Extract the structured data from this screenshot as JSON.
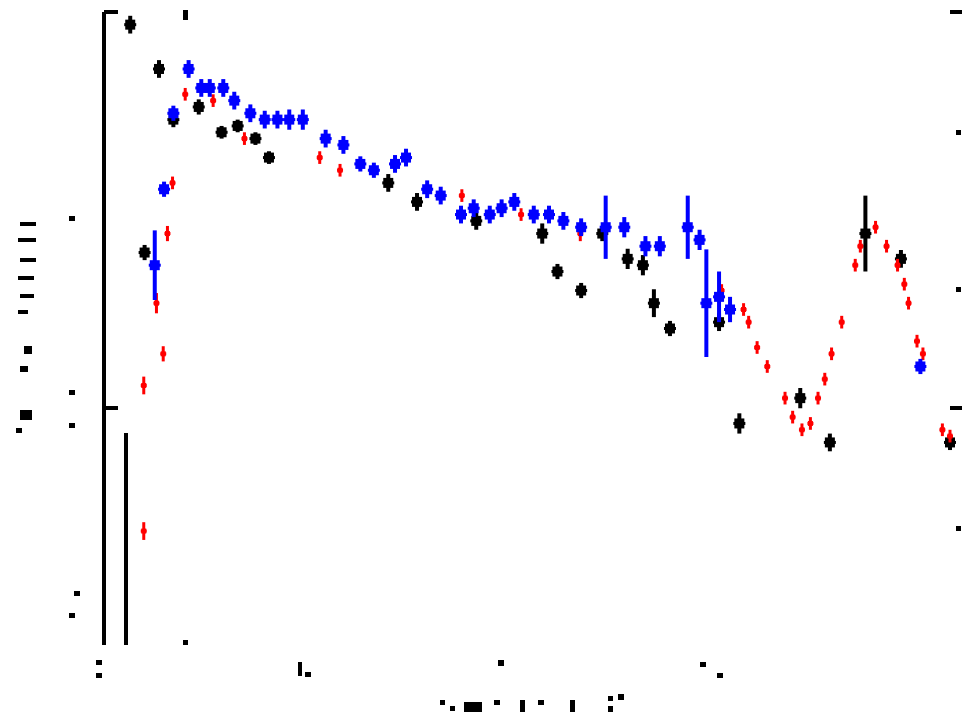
{
  "chart_data": {
    "type": "scatter",
    "xlim": [
      0,
      100
    ],
    "ylim": [
      0,
      100
    ],
    "grid": false,
    "colors": {
      "axis": "#000000",
      "s1": "#000000",
      "s2": "#ff0000",
      "s3": "#0000ff"
    },
    "series": [
      {
        "marker": "square",
        "points": [
          {
            "x": 3.1,
            "y": 98,
            "yerr": 1.4
          },
          {
            "x": 4.8,
            "y": 62,
            "yerr": 1.2
          },
          {
            "x": 6.5,
            "y": 91,
            "yerr": 1.4
          },
          {
            "x": 8.2,
            "y": 83,
            "yerr": 1.2
          },
          {
            "x": 11.2,
            "y": 85,
            "yerr": 1.2
          },
          {
            "x": 13.9,
            "y": 81,
            "yerr": 1.0
          },
          {
            "x": 15.8,
            "y": 82,
            "yerr": 1.0
          },
          {
            "x": 17.9,
            "y": 80,
            "yerr": 1.0
          },
          {
            "x": 19.5,
            "y": 77,
            "yerr": 1.0
          },
          {
            "x": 33.6,
            "y": 73,
            "yerr": 1.4
          },
          {
            "x": 37.0,
            "y": 70,
            "yerr": 1.4
          },
          {
            "x": 44.0,
            "y": 67,
            "yerr": 1.4
          },
          {
            "x": 51.8,
            "y": 65,
            "yerr": 1.6
          },
          {
            "x": 53.6,
            "y": 59,
            "yerr": 1.2
          },
          {
            "x": 56.4,
            "y": 56,
            "yerr": 1.2
          },
          {
            "x": 58.9,
            "y": 65,
            "yerr": 1.2
          },
          {
            "x": 61.9,
            "y": 61,
            "yerr": 1.6
          },
          {
            "x": 63.7,
            "y": 60,
            "yerr": 1.6
          },
          {
            "x": 65.0,
            "y": 54,
            "yerr": 2.2
          },
          {
            "x": 66.9,
            "y": 50,
            "yerr": 1.2
          },
          {
            "x": 72.7,
            "y": 51,
            "yerr": 1.4
          },
          {
            "x": 75.1,
            "y": 35,
            "yerr": 1.6
          },
          {
            "x": 82.3,
            "y": 39,
            "yerr": 1.6
          },
          {
            "x": 85.8,
            "y": 32,
            "yerr": 1.4
          },
          {
            "x": 90.0,
            "y": 65,
            "yerr": 6.0
          },
          {
            "x": 94.2,
            "y": 61,
            "yerr": 1.4
          },
          {
            "x": 100.0,
            "y": 32,
            "yerr": 1.2
          }
        ]
      },
      {
        "marker": "dot",
        "points": [
          {
            "x": 4.7,
            "y": 41,
            "yerr": 1.4
          },
          {
            "x": 4.7,
            "y": 18,
            "yerr": 1.4
          },
          {
            "x": 6.2,
            "y": 54,
            "yerr": 1.6
          },
          {
            "x": 7.0,
            "y": 46,
            "yerr": 1.2
          },
          {
            "x": 7.5,
            "y": 65,
            "yerr": 1.2
          },
          {
            "x": 8.1,
            "y": 73,
            "yerr": 1.0
          },
          {
            "x": 9.6,
            "y": 87,
            "yerr": 1.0
          },
          {
            "x": 12.9,
            "y": 86,
            "yerr": 1.0
          },
          {
            "x": 16.6,
            "y": 80,
            "yerr": 1.0
          },
          {
            "x": 25.5,
            "y": 77,
            "yerr": 1.0
          },
          {
            "x": 27.9,
            "y": 75,
            "yerr": 1.0
          },
          {
            "x": 42.3,
            "y": 71,
            "yerr": 1.0
          },
          {
            "x": 49.3,
            "y": 68,
            "yerr": 1.0
          },
          {
            "x": 56.3,
            "y": 65,
            "yerr": 1.2
          },
          {
            "x": 73.0,
            "y": 56,
            "yerr": 1.0
          },
          {
            "x": 75.6,
            "y": 53,
            "yerr": 1.0
          },
          {
            "x": 76.2,
            "y": 51,
            "yerr": 1.0
          },
          {
            "x": 77.2,
            "y": 47,
            "yerr": 1.0
          },
          {
            "x": 78.4,
            "y": 44,
            "yerr": 1.0
          },
          {
            "x": 80.5,
            "y": 39,
            "yerr": 1.0
          },
          {
            "x": 81.4,
            "y": 36,
            "yerr": 1.0
          },
          {
            "x": 82.5,
            "y": 34,
            "yerr": 1.0
          },
          {
            "x": 83.5,
            "y": 35,
            "yerr": 1.0
          },
          {
            "x": 84.4,
            "y": 39,
            "yerr": 1.0
          },
          {
            "x": 85.2,
            "y": 42,
            "yerr": 1.0
          },
          {
            "x": 86.0,
            "y": 46,
            "yerr": 1.0
          },
          {
            "x": 87.2,
            "y": 51,
            "yerr": 1.0
          },
          {
            "x": 88.8,
            "y": 60,
            "yerr": 1.0
          },
          {
            "x": 89.4,
            "y": 63,
            "yerr": 1.0
          },
          {
            "x": 91.2,
            "y": 66,
            "yerr": 1.0
          },
          {
            "x": 92.5,
            "y": 63,
            "yerr": 1.0
          },
          {
            "x": 93.8,
            "y": 60,
            "yerr": 1.0
          },
          {
            "x": 94.6,
            "y": 57,
            "yerr": 1.0
          },
          {
            "x": 95.1,
            "y": 54,
            "yerr": 1.0
          },
          {
            "x": 96.1,
            "y": 48,
            "yerr": 1.0
          },
          {
            "x": 96.8,
            "y": 46,
            "yerr": 1.0
          },
          {
            "x": 99.1,
            "y": 34,
            "yerr": 1.0
          },
          {
            "x": 100.0,
            "y": 33,
            "yerr": 1.0
          }
        ]
      },
      {
        "marker": "square",
        "points": [
          {
            "x": 6.0,
            "y": 60,
            "yerr": 5.5
          },
          {
            "x": 7.1,
            "y": 72,
            "yerr": 1.2
          },
          {
            "x": 8.2,
            "y": 84,
            "yerr": 1.2
          },
          {
            "x": 10.0,
            "y": 91,
            "yerr": 1.4
          },
          {
            "x": 11.5,
            "y": 88,
            "yerr": 1.4
          },
          {
            "x": 12.5,
            "y": 88,
            "yerr": 1.4
          },
          {
            "x": 14.1,
            "y": 88,
            "yerr": 1.4
          },
          {
            "x": 15.4,
            "y": 86,
            "yerr": 1.4
          },
          {
            "x": 17.3,
            "y": 84,
            "yerr": 1.4
          },
          {
            "x": 19.0,
            "y": 83,
            "yerr": 1.4
          },
          {
            "x": 20.5,
            "y": 83,
            "yerr": 1.4
          },
          {
            "x": 21.9,
            "y": 83,
            "yerr": 1.6
          },
          {
            "x": 23.5,
            "y": 83,
            "yerr": 1.6
          },
          {
            "x": 26.2,
            "y": 80,
            "yerr": 1.4
          },
          {
            "x": 28.3,
            "y": 79,
            "yerr": 1.4
          },
          {
            "x": 30.3,
            "y": 76,
            "yerr": 1.2
          },
          {
            "x": 31.9,
            "y": 75,
            "yerr": 1.2
          },
          {
            "x": 34.4,
            "y": 76,
            "yerr": 1.4
          },
          {
            "x": 35.7,
            "y": 77,
            "yerr": 1.4
          },
          {
            "x": 38.2,
            "y": 72,
            "yerr": 1.4
          },
          {
            "x": 39.8,
            "y": 71,
            "yerr": 1.4
          },
          {
            "x": 42.2,
            "y": 68,
            "yerr": 1.4
          },
          {
            "x": 43.7,
            "y": 69,
            "yerr": 1.4
          },
          {
            "x": 45.6,
            "y": 68,
            "yerr": 1.4
          },
          {
            "x": 47.0,
            "y": 69,
            "yerr": 1.4
          },
          {
            "x": 48.5,
            "y": 70,
            "yerr": 1.4
          },
          {
            "x": 50.8,
            "y": 68,
            "yerr": 1.4
          },
          {
            "x": 52.6,
            "y": 68,
            "yerr": 1.4
          },
          {
            "x": 54.3,
            "y": 67,
            "yerr": 1.4
          },
          {
            "x": 56.4,
            "y": 66,
            "yerr": 1.4
          },
          {
            "x": 59.3,
            "y": 66,
            "yerr": 5.0
          },
          {
            "x": 61.5,
            "y": 66,
            "yerr": 1.6
          },
          {
            "x": 64.0,
            "y": 63,
            "yerr": 1.6
          },
          {
            "x": 65.7,
            "y": 63,
            "yerr": 1.6
          },
          {
            "x": 69.0,
            "y": 66,
            "yerr": 5.0
          },
          {
            "x": 70.4,
            "y": 64,
            "yerr": 1.6
          },
          {
            "x": 71.2,
            "y": 54,
            "yerr": 8.5
          },
          {
            "x": 72.7,
            "y": 55,
            "yerr": 4.0
          },
          {
            "x": 74.0,
            "y": 53,
            "yerr": 2.0
          },
          {
            "x": 96.5,
            "y": 44,
            "yerr": 1.2
          }
        ]
      }
    ]
  }
}
